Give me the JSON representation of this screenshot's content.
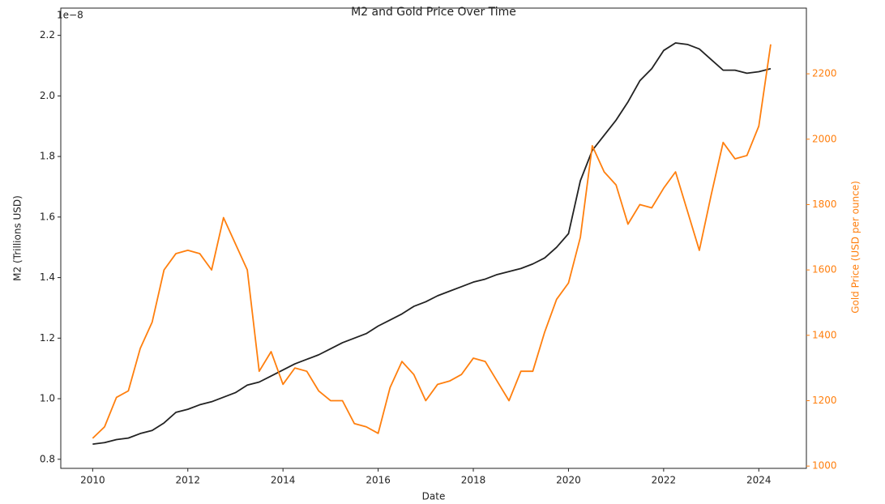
{
  "chart_data": {
    "type": "line",
    "title": "M2 and Gold Price Over Time",
    "x_label": "Date",
    "y_label": "M2 (Trillions USD)",
    "y2_label": "Gold Price (USD per ounce)",
    "y_offset_label": "1e−8",
    "x": [
      2010,
      2010.25,
      2010.5,
      2010.75,
      2011,
      2011.25,
      2011.5,
      2011.75,
      2012,
      2012.25,
      2012.5,
      2012.75,
      2013,
      2013.25,
      2013.5,
      2013.75,
      2014,
      2014.25,
      2014.5,
      2014.75,
      2015,
      2015.25,
      2015.5,
      2015.75,
      2016,
      2016.25,
      2016.5,
      2016.75,
      2017,
      2017.25,
      2017.5,
      2017.75,
      2018,
      2018.25,
      2018.5,
      2018.75,
      2019,
      2019.25,
      2019.5,
      2019.75,
      2020,
      2020.25,
      2020.5,
      2020.75,
      2021,
      2021.25,
      2021.5,
      2021.75,
      2022,
      2022.25,
      2022.5,
      2022.75,
      2023,
      2023.25,
      2023.5,
      2023.75,
      2024,
      2024.25
    ],
    "series": [
      {
        "name": "M2",
        "color": "#222222",
        "axis": "y",
        "values": [
          0.85,
          0.855,
          0.865,
          0.87,
          0.885,
          0.895,
          0.92,
          0.955,
          0.965,
          0.98,
          0.99,
          1.005,
          1.02,
          1.045,
          1.055,
          1.075,
          1.095,
          1.115,
          1.13,
          1.145,
          1.165,
          1.185,
          1.2,
          1.215,
          1.24,
          1.26,
          1.28,
          1.305,
          1.32,
          1.34,
          1.355,
          1.37,
          1.385,
          1.395,
          1.41,
          1.42,
          1.43,
          1.445,
          1.465,
          1.5,
          1.545,
          1.72,
          1.82,
          1.87,
          1.92,
          1.98,
          2.05,
          2.09,
          2.15,
          2.175,
          2.17,
          2.155,
          2.12,
          2.085,
          2.085,
          2.075,
          2.08,
          2.09
        ]
      },
      {
        "name": "Gold Price",
        "color": "#ff7f0e",
        "axis": "y2",
        "values": [
          1085,
          1120,
          1210,
          1230,
          1360,
          1440,
          1600,
          1650,
          1660,
          1650,
          1600,
          1760,
          1680,
          1600,
          1290,
          1350,
          1250,
          1300,
          1290,
          1230,
          1200,
          1200,
          1130,
          1120,
          1100,
          1240,
          1320,
          1280,
          1200,
          1250,
          1260,
          1280,
          1330,
          1320,
          1260,
          1200,
          1290,
          1290,
          1410,
          1510,
          1560,
          1700,
          1980,
          1900,
          1860,
          1740,
          1800,
          1790,
          1850,
          1900,
          1780,
          1660,
          1830,
          1990,
          1940,
          1950,
          2040,
          2290
        ]
      }
    ],
    "xlim": [
      2009.33,
      2025.0
    ],
    "xticks": [
      2010,
      2012,
      2014,
      2016,
      2018,
      2020,
      2022,
      2024
    ],
    "ylim": [
      0.77,
      2.29
    ],
    "yticks": [
      0.8,
      {
        "value": 1,
        "label": "1.0"
      },
      1.2,
      1.4,
      1.6,
      1.8,
      {
        "value": 2,
        "label": "2.0"
      },
      2.2
    ],
    "y2lim": [
      993,
      2401
    ],
    "y2ticks": [
      1000,
      1200,
      1400,
      1600,
      1800,
      2000,
      2200
    ],
    "y2_color": "#ff7f0e"
  }
}
